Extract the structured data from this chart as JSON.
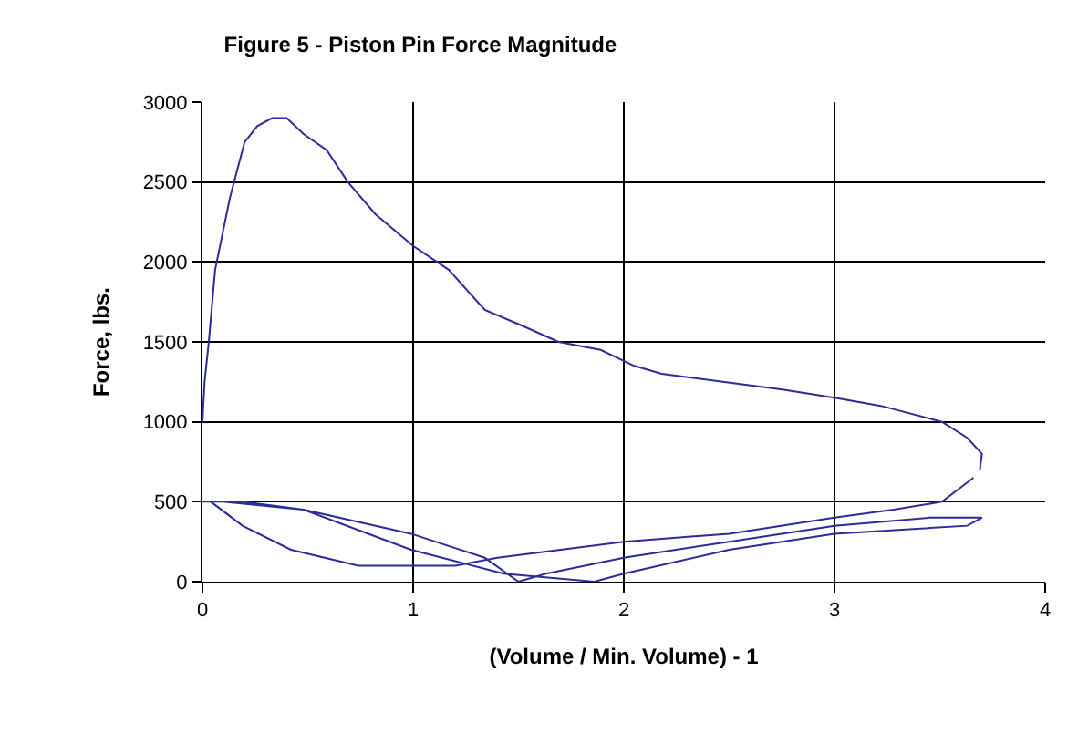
{
  "chart_data": {
    "type": "line",
    "title": "Figure 5 - Piston Pin Force Magnitude",
    "xlabel": "(Volume / Min. Volume) - 1",
    "ylabel": "Force, lbs.",
    "xlim": [
      0,
      4
    ],
    "xticks": [
      0,
      1,
      2,
      3,
      4
    ],
    "ylim": [
      0,
      3000
    ],
    "yticks": [
      0,
      500,
      1000,
      1500,
      2000,
      2500,
      3000
    ],
    "grid": true,
    "marker": "none",
    "line_style": "solid",
    "series": [
      {
        "color": "#2b2b9b",
        "x": [
          0,
          0.01,
          0.03,
          0.06,
          0.13,
          0.2,
          0.26,
          0.33,
          0.4,
          0.48,
          0.59,
          0.69,
          0.82,
          1.0,
          1.17,
          1.34,
          1.52,
          1.69,
          1.89,
          2.05,
          2.18,
          2.47,
          2.76,
          3.0,
          3.22,
          3.51,
          3.63,
          3.7,
          3.69
        ],
        "values": [
          1000,
          1250,
          1500,
          1950,
          2400,
          2750,
          2850,
          2900,
          2900,
          2800,
          2700,
          2500,
          2300,
          2100,
          1950,
          1700,
          1600,
          1500,
          1450,
          1350,
          1300,
          1250,
          1200,
          1150,
          1100,
          1000,
          900,
          800,
          700
        ]
      },
      {
        "color": "#2b2b9b",
        "x": [
          3.66,
          3.51,
          3.28,
          3.0,
          2.5,
          2.0,
          1.4,
          1.2,
          0.74,
          0.42,
          0.19,
          0.04
        ],
        "values": [
          650,
          500,
          450,
          400,
          300,
          250,
          150,
          100,
          100,
          200,
          350,
          500
        ]
      },
      {
        "color": "#2b2b9b",
        "x": [
          0.1,
          0.48,
          0.99,
          1.34,
          1.5,
          1.63,
          2.0,
          2.5,
          3.0,
          3.45,
          3.7,
          3.63,
          3.0,
          2.5,
          2.0,
          1.86,
          1.43,
          0.99,
          0.48,
          0.19,
          0
        ],
        "values": [
          500,
          450,
          300,
          150,
          0,
          50,
          150,
          250,
          350,
          400,
          400,
          350,
          300,
          200,
          50,
          0,
          50,
          200,
          450,
          500,
          500
        ]
      }
    ]
  }
}
